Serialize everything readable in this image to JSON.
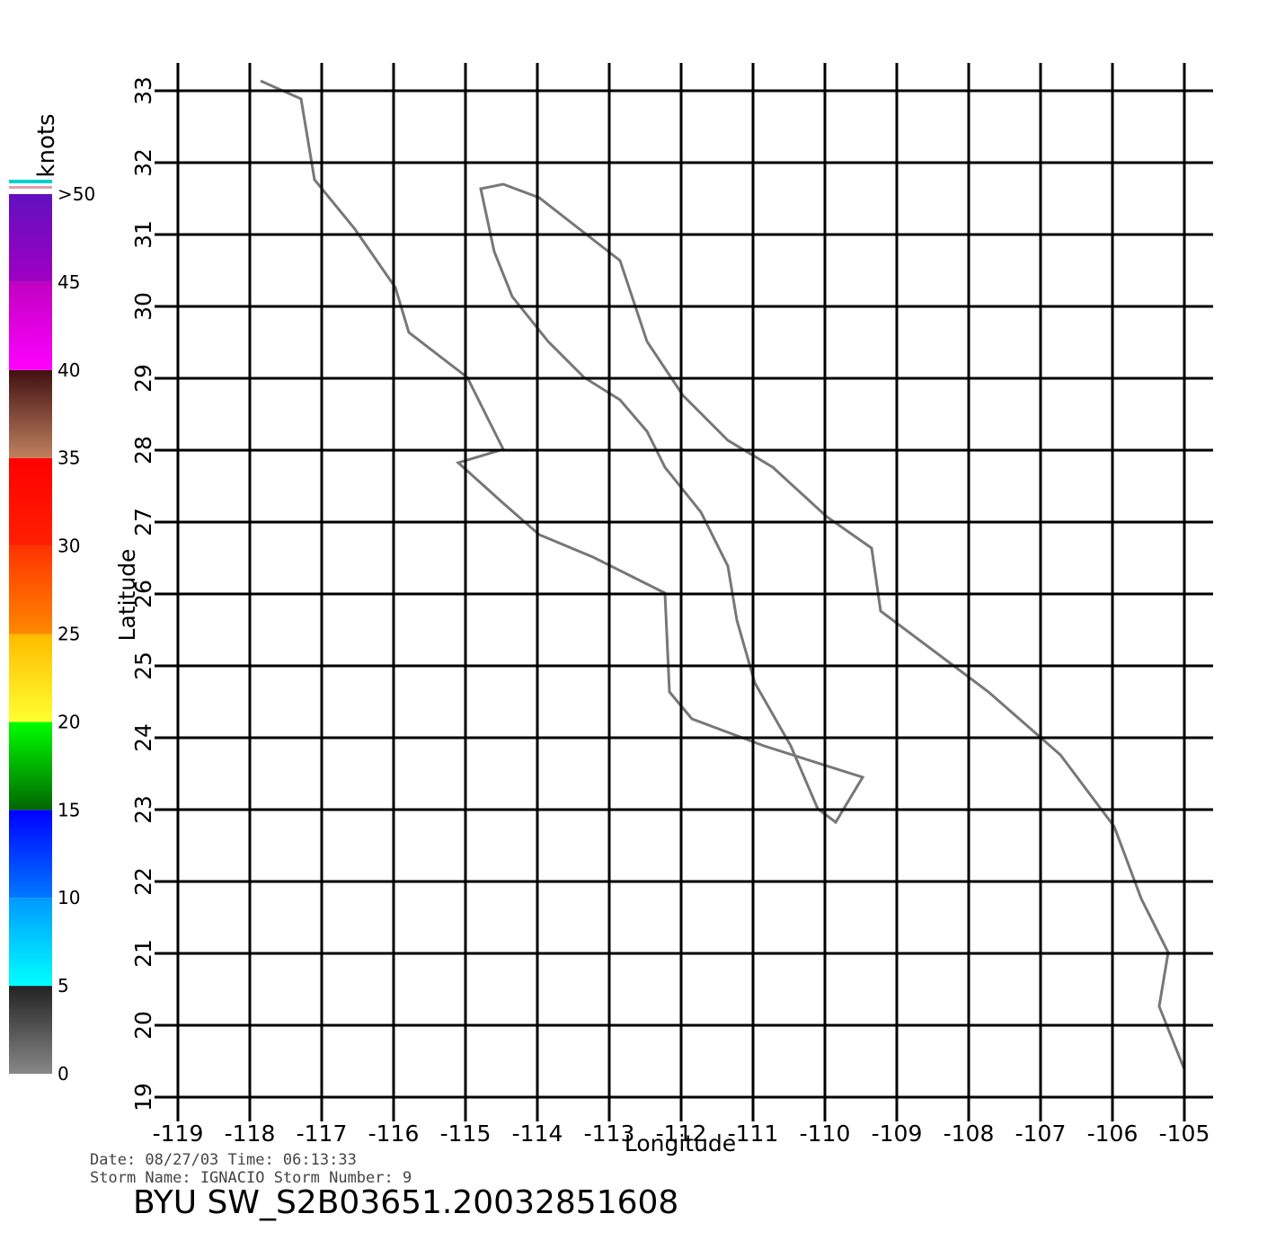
{
  "chart_data": {
    "type": "map",
    "xlabel": "Longitude",
    "ylabel": "Latitude",
    "xlim": [
      -119,
      -105
    ],
    "ylim": [
      19,
      33
    ],
    "xticks": [
      -119,
      -118,
      -117,
      -116,
      -115,
      -114,
      -113,
      -112,
      -111,
      -110,
      -109,
      -108,
      -107,
      -106,
      -105
    ],
    "yticks": [
      19,
      20,
      21,
      22,
      23,
      24,
      25,
      26,
      27,
      28,
      29,
      30,
      31,
      32,
      33
    ],
    "grid": true,
    "colorbar": {
      "label": "knots",
      "lim": [
        0,
        50
      ],
      "ticks": [
        0,
        5,
        10,
        15,
        20,
        25,
        30,
        35,
        40,
        45,
        {
          "value": 50,
          "label": ">50"
        }
      ],
      "colors": [
        [
          "#888888",
          "#222222"
        ],
        [
          "#00ffff",
          "#0099ff"
        ],
        [
          "#0077ff",
          "#0000ff"
        ],
        [
          "#006600",
          "#00ff00"
        ],
        [
          "#ffff30",
          "#ffbb00"
        ],
        [
          "#ff8800",
          "#ff3300"
        ],
        [
          "#ff2000",
          "#ff0000"
        ],
        [
          "#c08060",
          "#401010"
        ],
        [
          "#ff00ff",
          "#c000c0"
        ],
        [
          "#a000c0",
          "#6010c0"
        ]
      ]
    }
  },
  "footer": {
    "line1": "Date: 08/27/03   Time: 06:13:33",
    "line2": "Storm  Name: IGNACIO   Storm  Number: 9",
    "product": "BYU  SW_S2B03651.20032851608"
  }
}
